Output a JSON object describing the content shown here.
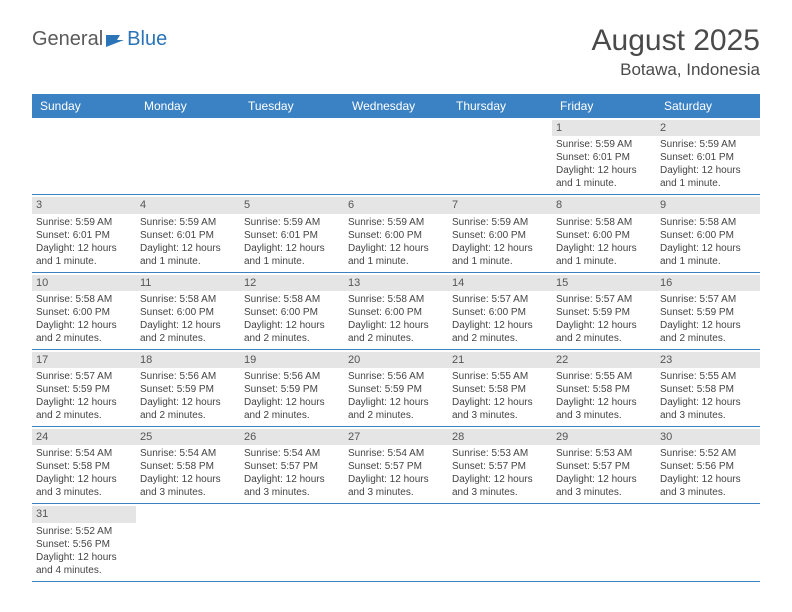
{
  "logo": {
    "text1": "General",
    "text2": "Blue"
  },
  "title": "August 2025",
  "location": "Botawa, Indonesia",
  "colors": {
    "header_bg": "#3b82c4",
    "header_text": "#ffffff",
    "daynum_bg": "#e5e5e5",
    "border": "#3b82c4",
    "text": "#444444",
    "logo_gray": "#5a5a5a",
    "logo_blue": "#2b74b8"
  },
  "day_labels": [
    "Sunday",
    "Monday",
    "Tuesday",
    "Wednesday",
    "Thursday",
    "Friday",
    "Saturday"
  ],
  "weeks": [
    [
      {
        "num": "",
        "lines": []
      },
      {
        "num": "",
        "lines": []
      },
      {
        "num": "",
        "lines": []
      },
      {
        "num": "",
        "lines": []
      },
      {
        "num": "",
        "lines": []
      },
      {
        "num": "1",
        "lines": [
          "Sunrise: 5:59 AM",
          "Sunset: 6:01 PM",
          "Daylight: 12 hours and 1 minute."
        ]
      },
      {
        "num": "2",
        "lines": [
          "Sunrise: 5:59 AM",
          "Sunset: 6:01 PM",
          "Daylight: 12 hours and 1 minute."
        ]
      }
    ],
    [
      {
        "num": "3",
        "lines": [
          "Sunrise: 5:59 AM",
          "Sunset: 6:01 PM",
          "Daylight: 12 hours and 1 minute."
        ]
      },
      {
        "num": "4",
        "lines": [
          "Sunrise: 5:59 AM",
          "Sunset: 6:01 PM",
          "Daylight: 12 hours and 1 minute."
        ]
      },
      {
        "num": "5",
        "lines": [
          "Sunrise: 5:59 AM",
          "Sunset: 6:01 PM",
          "Daylight: 12 hours and 1 minute."
        ]
      },
      {
        "num": "6",
        "lines": [
          "Sunrise: 5:59 AM",
          "Sunset: 6:00 PM",
          "Daylight: 12 hours and 1 minute."
        ]
      },
      {
        "num": "7",
        "lines": [
          "Sunrise: 5:59 AM",
          "Sunset: 6:00 PM",
          "Daylight: 12 hours and 1 minute."
        ]
      },
      {
        "num": "8",
        "lines": [
          "Sunrise: 5:58 AM",
          "Sunset: 6:00 PM",
          "Daylight: 12 hours and 1 minute."
        ]
      },
      {
        "num": "9",
        "lines": [
          "Sunrise: 5:58 AM",
          "Sunset: 6:00 PM",
          "Daylight: 12 hours and 1 minute."
        ]
      }
    ],
    [
      {
        "num": "10",
        "lines": [
          "Sunrise: 5:58 AM",
          "Sunset: 6:00 PM",
          "Daylight: 12 hours and 2 minutes."
        ]
      },
      {
        "num": "11",
        "lines": [
          "Sunrise: 5:58 AM",
          "Sunset: 6:00 PM",
          "Daylight: 12 hours and 2 minutes."
        ]
      },
      {
        "num": "12",
        "lines": [
          "Sunrise: 5:58 AM",
          "Sunset: 6:00 PM",
          "Daylight: 12 hours and 2 minutes."
        ]
      },
      {
        "num": "13",
        "lines": [
          "Sunrise: 5:58 AM",
          "Sunset: 6:00 PM",
          "Daylight: 12 hours and 2 minutes."
        ]
      },
      {
        "num": "14",
        "lines": [
          "Sunrise: 5:57 AM",
          "Sunset: 6:00 PM",
          "Daylight: 12 hours and 2 minutes."
        ]
      },
      {
        "num": "15",
        "lines": [
          "Sunrise: 5:57 AM",
          "Sunset: 5:59 PM",
          "Daylight: 12 hours and 2 minutes."
        ]
      },
      {
        "num": "16",
        "lines": [
          "Sunrise: 5:57 AM",
          "Sunset: 5:59 PM",
          "Daylight: 12 hours and 2 minutes."
        ]
      }
    ],
    [
      {
        "num": "17",
        "lines": [
          "Sunrise: 5:57 AM",
          "Sunset: 5:59 PM",
          "Daylight: 12 hours and 2 minutes."
        ]
      },
      {
        "num": "18",
        "lines": [
          "Sunrise: 5:56 AM",
          "Sunset: 5:59 PM",
          "Daylight: 12 hours and 2 minutes."
        ]
      },
      {
        "num": "19",
        "lines": [
          "Sunrise: 5:56 AM",
          "Sunset: 5:59 PM",
          "Daylight: 12 hours and 2 minutes."
        ]
      },
      {
        "num": "20",
        "lines": [
          "Sunrise: 5:56 AM",
          "Sunset: 5:59 PM",
          "Daylight: 12 hours and 2 minutes."
        ]
      },
      {
        "num": "21",
        "lines": [
          "Sunrise: 5:55 AM",
          "Sunset: 5:58 PM",
          "Daylight: 12 hours and 3 minutes."
        ]
      },
      {
        "num": "22",
        "lines": [
          "Sunrise: 5:55 AM",
          "Sunset: 5:58 PM",
          "Daylight: 12 hours and 3 minutes."
        ]
      },
      {
        "num": "23",
        "lines": [
          "Sunrise: 5:55 AM",
          "Sunset: 5:58 PM",
          "Daylight: 12 hours and 3 minutes."
        ]
      }
    ],
    [
      {
        "num": "24",
        "lines": [
          "Sunrise: 5:54 AM",
          "Sunset: 5:58 PM",
          "Daylight: 12 hours and 3 minutes."
        ]
      },
      {
        "num": "25",
        "lines": [
          "Sunrise: 5:54 AM",
          "Sunset: 5:58 PM",
          "Daylight: 12 hours and 3 minutes."
        ]
      },
      {
        "num": "26",
        "lines": [
          "Sunrise: 5:54 AM",
          "Sunset: 5:57 PM",
          "Daylight: 12 hours and 3 minutes."
        ]
      },
      {
        "num": "27",
        "lines": [
          "Sunrise: 5:54 AM",
          "Sunset: 5:57 PM",
          "Daylight: 12 hours and 3 minutes."
        ]
      },
      {
        "num": "28",
        "lines": [
          "Sunrise: 5:53 AM",
          "Sunset: 5:57 PM",
          "Daylight: 12 hours and 3 minutes."
        ]
      },
      {
        "num": "29",
        "lines": [
          "Sunrise: 5:53 AM",
          "Sunset: 5:57 PM",
          "Daylight: 12 hours and 3 minutes."
        ]
      },
      {
        "num": "30",
        "lines": [
          "Sunrise: 5:52 AM",
          "Sunset: 5:56 PM",
          "Daylight: 12 hours and 3 minutes."
        ]
      }
    ],
    [
      {
        "num": "31",
        "lines": [
          "Sunrise: 5:52 AM",
          "Sunset: 5:56 PM",
          "Daylight: 12 hours and 4 minutes."
        ]
      },
      {
        "num": "",
        "lines": []
      },
      {
        "num": "",
        "lines": []
      },
      {
        "num": "",
        "lines": []
      },
      {
        "num": "",
        "lines": []
      },
      {
        "num": "",
        "lines": []
      },
      {
        "num": "",
        "lines": []
      }
    ]
  ]
}
